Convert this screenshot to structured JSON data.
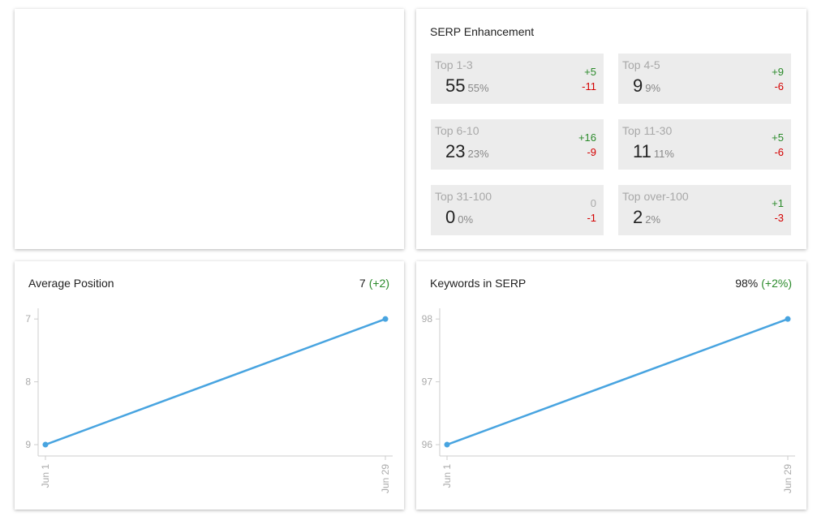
{
  "serp": {
    "title": "SERP Enhancement",
    "tiles": [
      {
        "label": "Top 1-3",
        "count": "55",
        "percent": "55%",
        "up": "+5",
        "down": "-11"
      },
      {
        "label": "Top 4-5",
        "count": "9",
        "percent": "9%",
        "up": "+9",
        "down": "-6"
      },
      {
        "label": "Top 6-10",
        "count": "23",
        "percent": "23%",
        "up": "+16",
        "down": "-9"
      },
      {
        "label": "Top 11-30",
        "count": "11",
        "percent": "11%",
        "up": "+5",
        "down": "-6"
      },
      {
        "label": "Top 31-100",
        "count": "0",
        "percent": "0%",
        "up": "0",
        "down": "-1"
      },
      {
        "label": "Top over-100",
        "count": "2",
        "percent": "2%",
        "up": "+1",
        "down": "-3"
      }
    ]
  },
  "chart_data": [
    {
      "type": "line",
      "title": "Average Position",
      "headline": "7",
      "change": "(+2)",
      "categories": [
        "Jun 1",
        "Jun 29"
      ],
      "values": [
        9,
        7
      ],
      "color": "#48a4e0",
      "ylim": [
        6.83,
        9.18
      ],
      "y_reversed": true,
      "yticks": [
        7,
        8,
        9
      ]
    },
    {
      "type": "line",
      "title": "Keywords in SERP",
      "headline": "98%",
      "change": "(+2%)",
      "categories": [
        "Jun 1",
        "Jun 29"
      ],
      "values": [
        96,
        98
      ],
      "color": "#48a4e0",
      "ylim": [
        95.82,
        98.17
      ],
      "y_reversed": false,
      "yticks": [
        96,
        97,
        98
      ]
    }
  ]
}
